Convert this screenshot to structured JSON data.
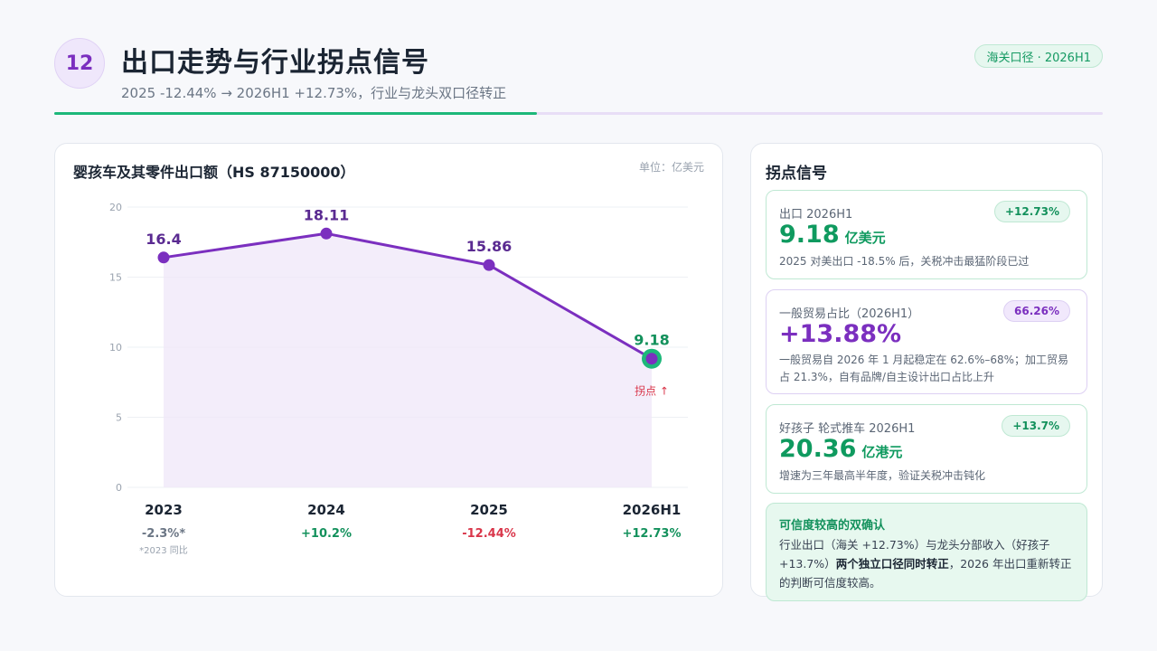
{
  "header": {
    "slide_number": "12",
    "title": "出口走势与行业拐点信号",
    "subtitle": "2025 -12.44% → 2026H1 +12.73%，行业与龙头双口径转正",
    "tag": "海关口径 · 2026H1"
  },
  "chart_data": {
    "type": "line",
    "title": "婴孩车及其零件出口额（HS 87150000）",
    "unit_label": "单位：亿美元",
    "categories": [
      "2023",
      "2024",
      "2025",
      "2026H1"
    ],
    "values": [
      16.4,
      18.11,
      15.86,
      9.18
    ],
    "value_labels": [
      "16.4",
      "18.11",
      "15.86",
      "9.18"
    ],
    "growth_labels": [
      "-2.3%*",
      "+10.2%",
      "-12.44%",
      "+12.73%"
    ],
    "growth_note": "*2023 同比",
    "annotation": "拐点 ↑",
    "y_ticks": [
      0,
      5,
      10,
      15,
      20
    ],
    "ylim": [
      0,
      20
    ],
    "grid": true,
    "colors": {
      "line": "#7b2fbf",
      "area": "#efe7f8",
      "positive": "#13915c",
      "negative": "#d9364a",
      "neutral": "#6b7685",
      "highlight": "#1db87a"
    }
  },
  "panel": {
    "title": "拐点信号",
    "signals": [
      {
        "label": "出口 2026H1",
        "pill": "+12.73%",
        "value": "9.18",
        "unit": "亿美元",
        "desc": "2025 对美出口 -18.5% 后，关税冲击最猛阶段已过"
      },
      {
        "label": "一般贸易占比（2026H1）",
        "pill": "66.26%",
        "value": "+13.88%",
        "unit": "",
        "desc": "一般贸易自 2026 年 1 月起稳定在 62.6%–68%；加工贸易占 21.3%，自有品牌/自主设计出口占比上升"
      },
      {
        "label": "好孩子 轮式推车 2026H1",
        "pill": "+13.7%",
        "value": "20.36",
        "unit": "亿港元",
        "desc": "增速为三年最高半年度，验证关税冲击钝化"
      }
    ],
    "confirm": {
      "title": "可信度较高的双确认",
      "text_a": "行业出口（海关 +12.73%）与龙头分部收入（好孩子 +13.7%）",
      "text_bold": "两个独立口径同时转正",
      "text_b": "，2026 年出口重新转正的判断可信度较高。"
    }
  }
}
